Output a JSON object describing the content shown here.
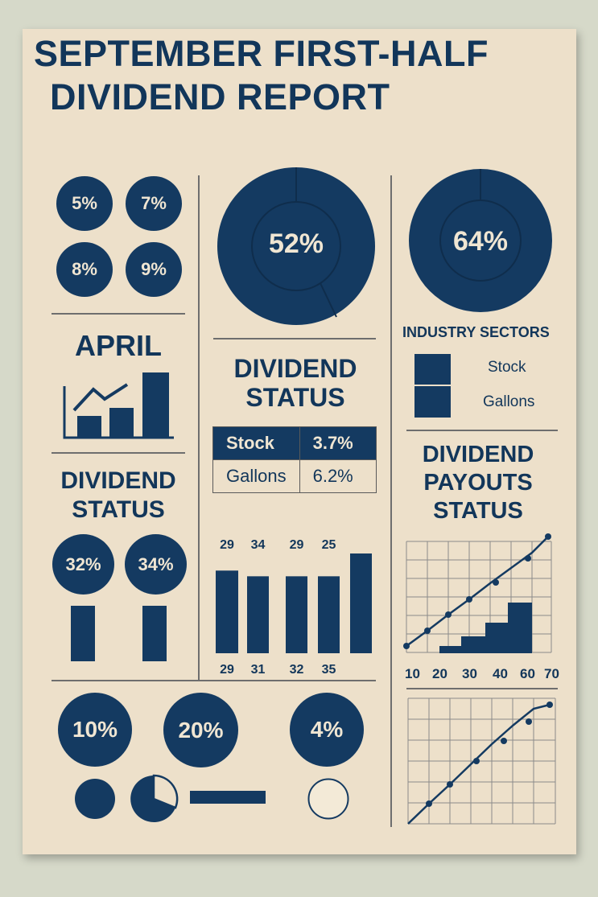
{
  "title": {
    "line1": "SEPTEMBER FIRST-HALF",
    "line2": "DIVIDEND REPORT"
  },
  "left_col": {
    "small_circles": [
      "5%",
      "7%",
      "8%",
      "9%"
    ],
    "april_label": "APRIL",
    "dividend_status": {
      "line1": "DIVIDEND",
      "line2": "STATUS"
    },
    "status_circles": [
      "32%",
      "34%"
    ]
  },
  "center_col": {
    "donut_label": "52%",
    "dividend_status": {
      "line1": "DIVIDEND",
      "line2": "STATUS"
    },
    "table": {
      "rows": [
        {
          "label": "Stock",
          "value": "3.7%"
        },
        {
          "label": "Gallons",
          "value": "6.2%"
        }
      ]
    }
  },
  "right_col": {
    "donut_label": "64%",
    "sectors_title": "INDUSTRY SECTORS",
    "sector_items": [
      "Stock",
      "Gallons"
    ],
    "payouts": {
      "line1": "DIVIDEND",
      "line2": "PAYOUTS",
      "line3": "STATUS"
    }
  },
  "bottom": {
    "circles": [
      "10%",
      "20%",
      "4%"
    ]
  },
  "chart_data": [
    {
      "type": "bar",
      "title": "",
      "top_labels": [
        "29",
        "34",
        "29",
        "25",
        ""
      ],
      "bottom_labels": [
        "29",
        "31",
        "32",
        "35",
        ""
      ],
      "values": [
        29,
        27,
        27,
        27,
        35
      ]
    },
    {
      "type": "line",
      "title": "",
      "x_tick_labels": [
        "10",
        "20",
        "30",
        "40",
        "60",
        "70"
      ],
      "grid": true
    },
    {
      "type": "line",
      "title": "",
      "grid": true
    }
  ],
  "colors": {
    "navy": "#143a61",
    "paper": "#ede0ca",
    "background": "#d6d9c9"
  }
}
